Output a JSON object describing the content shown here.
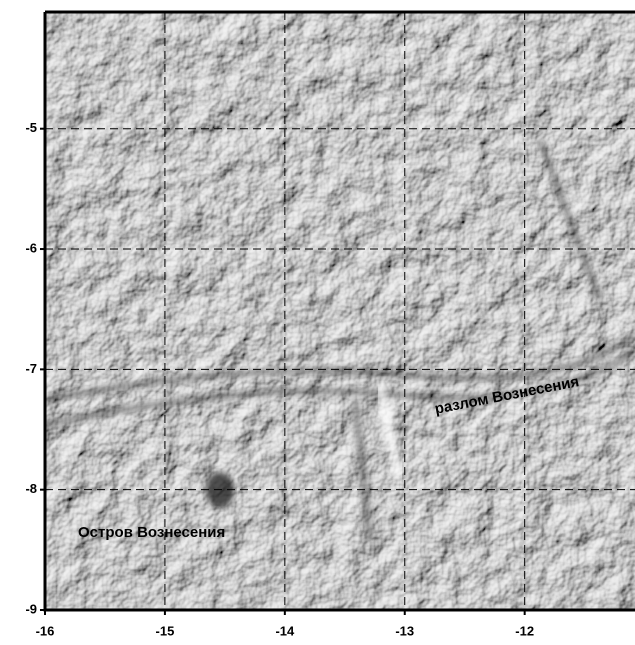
{
  "chart_data": {
    "type": "map",
    "xlim": [
      -16,
      -11.08
    ],
    "ylim": [
      -9,
      -4.03
    ],
    "xticks": [
      -16,
      -15,
      -14,
      -13,
      -12
    ],
    "yticks": [
      -9,
      -8,
      -7,
      -6,
      -5
    ],
    "grid": true,
    "annotations": [
      "Остров Вознесения",
      "разлом Вознесения"
    ]
  }
}
